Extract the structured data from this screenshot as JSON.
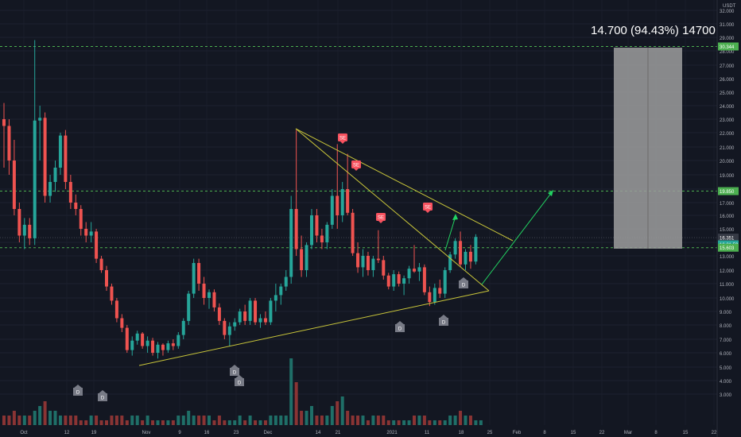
{
  "chart_data": {
    "type": "candlestick",
    "currency": "USDT",
    "y_axis_labels": [
      "32.000",
      "31.000",
      "29.000",
      "28.000",
      "27.000",
      "26.000",
      "25.000",
      "24.000",
      "23.000",
      "22.000",
      "21.000",
      "20.000",
      "19.000",
      "18.000",
      "17.000",
      "16.000",
      "15.000",
      "14.000",
      "13.000",
      "12.000",
      "11.000",
      "10.000",
      "9.000",
      "8.000",
      "7.000",
      "6.000",
      "5.000",
      "4.000",
      "3.000"
    ],
    "x_axis_labels": [
      "Oct",
      "12",
      "19",
      "Nov",
      "9",
      "16",
      "23",
      "Dec",
      "14",
      "21",
      "2021",
      "11",
      "18",
      "25",
      "Feb",
      "8",
      "15",
      "22",
      "Mar",
      "8",
      "15",
      "22"
    ],
    "ylim": [
      3.0,
      33.0
    ],
    "price_tags": [
      {
        "text": "30.344",
        "value": 30.344,
        "color": "#4caf50"
      },
      {
        "text": "19.850",
        "value": 19.85,
        "color": "#4caf50"
      },
      {
        "text": "16.351",
        "value": 16.351,
        "color": "#363a45"
      },
      {
        "text": "16.21.59",
        "value": 15.85,
        "color": "#26a69a"
      },
      {
        "text": "15.603",
        "value": 15.603,
        "color": "#4caf50"
      }
    ],
    "projection_label": "14.700 (94.43%) 14700",
    "signals": [
      {
        "text": "SE",
        "kind": "sell"
      },
      {
        "text": "SE",
        "kind": "sell"
      },
      {
        "text": "SE",
        "kind": "sell"
      },
      {
        "text": "SE",
        "kind": "sell"
      },
      {
        "text": "D",
        "kind": "div"
      },
      {
        "text": "D",
        "kind": "div"
      },
      {
        "text": "D",
        "kind": "div"
      },
      {
        "text": "D",
        "kind": "div"
      },
      {
        "text": "D",
        "kind": "div"
      },
      {
        "text": "D",
        "kind": "div"
      },
      {
        "text": "D",
        "kind": "div"
      }
    ],
    "candles": [
      {
        "o": 25.0,
        "h": 26.2,
        "l": 21.5,
        "c": 24.5
      },
      {
        "o": 24.5,
        "h": 25.0,
        "l": 21.0,
        "c": 22.0
      },
      {
        "o": 22.0,
        "h": 23.5,
        "l": 18.0,
        "c": 18.5
      },
      {
        "o": 18.5,
        "h": 19.0,
        "l": 16.0,
        "c": 16.5
      },
      {
        "o": 16.5,
        "h": 17.8,
        "l": 15.5,
        "c": 17.3
      },
      {
        "o": 17.3,
        "h": 17.8,
        "l": 15.8,
        "c": 16.3
      },
      {
        "o": 16.3,
        "h": 30.8,
        "l": 15.8,
        "c": 24.9
      },
      {
        "o": 24.9,
        "h": 26.0,
        "l": 22.0,
        "c": 25.1
      },
      {
        "o": 25.1,
        "h": 25.5,
        "l": 19.0,
        "c": 19.5
      },
      {
        "o": 19.5,
        "h": 21.0,
        "l": 19.0,
        "c": 20.5
      },
      {
        "o": 20.5,
        "h": 22.0,
        "l": 19.8,
        "c": 21.5
      },
      {
        "o": 21.5,
        "h": 24.0,
        "l": 21.0,
        "c": 23.8
      },
      {
        "o": 23.8,
        "h": 24.2,
        "l": 20.0,
        "c": 20.5
      },
      {
        "o": 20.5,
        "h": 21.0,
        "l": 18.5,
        "c": 19.0
      },
      {
        "o": 19.0,
        "h": 19.6,
        "l": 18.0,
        "c": 18.5
      },
      {
        "o": 18.5,
        "h": 18.8,
        "l": 16.5,
        "c": 17.0
      },
      {
        "o": 17.0,
        "h": 17.5,
        "l": 16.0,
        "c": 16.5
      },
      {
        "o": 16.5,
        "h": 17.5,
        "l": 16.0,
        "c": 16.8
      },
      {
        "o": 16.8,
        "h": 17.0,
        "l": 14.5,
        "c": 14.8
      },
      {
        "o": 14.8,
        "h": 15.0,
        "l": 13.8,
        "c": 14.0
      },
      {
        "o": 14.0,
        "h": 14.3,
        "l": 12.5,
        "c": 12.8
      },
      {
        "o": 12.8,
        "h": 13.0,
        "l": 11.5,
        "c": 11.8
      },
      {
        "o": 11.8,
        "h": 12.0,
        "l": 10.2,
        "c": 10.5
      },
      {
        "o": 10.5,
        "h": 10.8,
        "l": 9.5,
        "c": 9.8
      },
      {
        "o": 9.8,
        "h": 10.0,
        "l": 8.0,
        "c": 8.2
      },
      {
        "o": 8.2,
        "h": 9.2,
        "l": 7.8,
        "c": 8.9
      },
      {
        "o": 8.9,
        "h": 9.6,
        "l": 8.6,
        "c": 9.4
      },
      {
        "o": 9.4,
        "h": 9.5,
        "l": 8.3,
        "c": 8.5
      },
      {
        "o": 8.5,
        "h": 9.2,
        "l": 8.0,
        "c": 8.9
      },
      {
        "o": 8.9,
        "h": 9.1,
        "l": 7.8,
        "c": 8.0
      },
      {
        "o": 8.0,
        "h": 8.8,
        "l": 7.6,
        "c": 8.6
      },
      {
        "o": 8.6,
        "h": 8.7,
        "l": 7.8,
        "c": 8.2
      },
      {
        "o": 8.2,
        "h": 8.9,
        "l": 8.0,
        "c": 8.7
      },
      {
        "o": 8.7,
        "h": 9.0,
        "l": 8.2,
        "c": 8.5
      },
      {
        "o": 8.5,
        "h": 9.5,
        "l": 8.3,
        "c": 9.3
      },
      {
        "o": 9.3,
        "h": 10.5,
        "l": 9.0,
        "c": 10.3
      },
      {
        "o": 10.3,
        "h": 12.5,
        "l": 10.0,
        "c": 12.3
      },
      {
        "o": 12.3,
        "h": 14.8,
        "l": 12.0,
        "c": 14.5
      },
      {
        "o": 14.5,
        "h": 14.8,
        "l": 12.5,
        "c": 13.0
      },
      {
        "o": 13.0,
        "h": 13.5,
        "l": 11.5,
        "c": 12.0
      },
      {
        "o": 12.0,
        "h": 12.6,
        "l": 11.2,
        "c": 12.4
      },
      {
        "o": 12.4,
        "h": 12.6,
        "l": 11.0,
        "c": 11.3
      },
      {
        "o": 11.3,
        "h": 11.6,
        "l": 10.0,
        "c": 10.3
      },
      {
        "o": 10.3,
        "h": 10.5,
        "l": 9.0,
        "c": 9.3
      },
      {
        "o": 9.3,
        "h": 10.2,
        "l": 8.5,
        "c": 9.9
      },
      {
        "o": 9.9,
        "h": 10.5,
        "l": 9.6,
        "c": 10.2
      },
      {
        "o": 10.2,
        "h": 11.2,
        "l": 10.0,
        "c": 11.0
      },
      {
        "o": 11.0,
        "h": 11.5,
        "l": 10.0,
        "c": 10.3
      },
      {
        "o": 10.3,
        "h": 12.0,
        "l": 10.0,
        "c": 11.8
      },
      {
        "o": 11.8,
        "h": 12.0,
        "l": 10.0,
        "c": 10.2
      },
      {
        "o": 10.2,
        "h": 10.8,
        "l": 9.8,
        "c": 10.5
      },
      {
        "o": 10.5,
        "h": 11.0,
        "l": 10.0,
        "c": 10.2
      },
      {
        "o": 10.2,
        "h": 12.0,
        "l": 10.0,
        "c": 11.8
      },
      {
        "o": 11.8,
        "h": 13.0,
        "l": 11.0,
        "c": 12.2
      },
      {
        "o": 12.2,
        "h": 13.0,
        "l": 11.5,
        "c": 12.8
      },
      {
        "o": 12.8,
        "h": 14.0,
        "l": 12.5,
        "c": 13.5
      },
      {
        "o": 13.5,
        "h": 19.5,
        "l": 13.0,
        "c": 18.5
      },
      {
        "o": 18.5,
        "h": 24.2,
        "l": 15.0,
        "c": 15.5
      },
      {
        "o": 15.5,
        "h": 16.5,
        "l": 13.5,
        "c": 14.0
      },
      {
        "o": 14.0,
        "h": 16.0,
        "l": 13.5,
        "c": 15.8
      },
      {
        "o": 15.8,
        "h": 18.5,
        "l": 15.5,
        "c": 18.0
      },
      {
        "o": 18.0,
        "h": 18.5,
        "l": 16.0,
        "c": 16.5
      },
      {
        "o": 16.5,
        "h": 17.0,
        "l": 15.5,
        "c": 16.0
      },
      {
        "o": 16.0,
        "h": 17.5,
        "l": 15.5,
        "c": 17.3
      },
      {
        "o": 17.3,
        "h": 20.0,
        "l": 17.0,
        "c": 19.5
      },
      {
        "o": 19.5,
        "h": 23.2,
        "l": 17.0,
        "c": 18.0
      },
      {
        "o": 18.0,
        "h": 20.5,
        "l": 17.5,
        "c": 20.0
      },
      {
        "o": 20.0,
        "h": 22.5,
        "l": 18.0,
        "c": 18.2
      },
      {
        "o": 18.2,
        "h": 18.5,
        "l": 15.0,
        "c": 15.2
      },
      {
        "o": 15.2,
        "h": 16.0,
        "l": 13.8,
        "c": 14.2
      },
      {
        "o": 14.2,
        "h": 15.5,
        "l": 13.5,
        "c": 15.0
      },
      {
        "o": 15.0,
        "h": 15.3,
        "l": 13.6,
        "c": 14.0
      },
      {
        "o": 14.0,
        "h": 15.0,
        "l": 13.5,
        "c": 14.8
      },
      {
        "o": 14.8,
        "h": 16.9,
        "l": 14.5,
        "c": 14.7
      },
      {
        "o": 14.7,
        "h": 15.0,
        "l": 13.3,
        "c": 13.6
      },
      {
        "o": 13.6,
        "h": 13.8,
        "l": 12.6,
        "c": 12.8
      },
      {
        "o": 12.8,
        "h": 14.0,
        "l": 12.5,
        "c": 13.7
      },
      {
        "o": 13.7,
        "h": 13.9,
        "l": 12.8,
        "c": 13.0
      },
      {
        "o": 13.0,
        "h": 13.6,
        "l": 12.2,
        "c": 13.4
      },
      {
        "o": 13.4,
        "h": 14.3,
        "l": 13.0,
        "c": 14.1
      },
      {
        "o": 14.1,
        "h": 15.8,
        "l": 13.8,
        "c": 13.9
      },
      {
        "o": 13.9,
        "h": 14.5,
        "l": 13.2,
        "c": 14.2
      },
      {
        "o": 14.2,
        "h": 14.4,
        "l": 12.2,
        "c": 12.4
      },
      {
        "o": 12.4,
        "h": 12.8,
        "l": 11.4,
        "c": 11.7
      },
      {
        "o": 11.7,
        "h": 13.0,
        "l": 11.5,
        "c": 12.7
      },
      {
        "o": 12.7,
        "h": 13.3,
        "l": 12.0,
        "c": 12.3
      },
      {
        "o": 12.3,
        "h": 14.2,
        "l": 12.0,
        "c": 14.0
      },
      {
        "o": 14.0,
        "h": 15.3,
        "l": 13.8,
        "c": 15.1
      },
      {
        "o": 15.1,
        "h": 16.3,
        "l": 14.8,
        "c": 16.1
      },
      {
        "o": 16.1,
        "h": 16.8,
        "l": 14.2,
        "c": 14.4
      },
      {
        "o": 14.4,
        "h": 15.5,
        "l": 14.0,
        "c": 15.3
      },
      {
        "o": 15.3,
        "h": 15.8,
        "l": 14.1,
        "c": 14.6
      },
      {
        "o": 14.6,
        "h": 16.6,
        "l": 14.4,
        "c": 16.4
      }
    ],
    "volumes": [
      2,
      2,
      3,
      2,
      2,
      2,
      3,
      4,
      5,
      3,
      3,
      2,
      2,
      2,
      2,
      1,
      1,
      2,
      2,
      1,
      1,
      2,
      2,
      2,
      1,
      2,
      2,
      1,
      2,
      1,
      1,
      1,
      1,
      1,
      2,
      2,
      3,
      2,
      2,
      2,
      2,
      1,
      2,
      1,
      1,
      1,
      2,
      1,
      2,
      1,
      1,
      1,
      2,
      2,
      2,
      2,
      14,
      9,
      3,
      3,
      4,
      2,
      2,
      2,
      4,
      5,
      6,
      3,
      2,
      2,
      2,
      1,
      2,
      2,
      2,
      1,
      1,
      1,
      1,
      1,
      2,
      2,
      2,
      1,
      1,
      1,
      1,
      2,
      2,
      3,
      2,
      2,
      1,
      1
    ]
  }
}
